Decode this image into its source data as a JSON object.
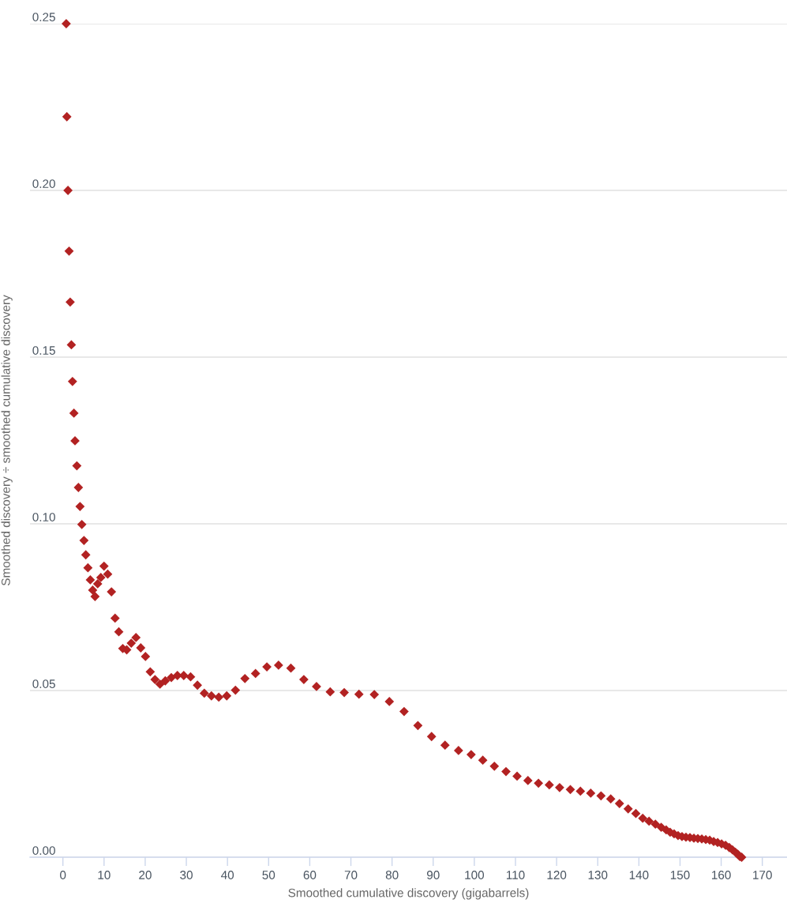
{
  "chart_data": {
    "type": "scatter",
    "xlabel": "Smoothed cumulative discovery (gigabarrels)",
    "ylabel": "Smoothed discovery ÷ smoothed cumulative discovery",
    "xlim": [
      -8,
      176
    ],
    "ylim": [
      0,
      0.25
    ],
    "xticks": [
      0,
      10,
      20,
      30,
      40,
      50,
      60,
      70,
      80,
      90,
      100,
      110,
      120,
      130,
      140,
      150,
      160,
      170
    ],
    "yticks": [
      {
        "value": 0,
        "label": "0.00"
      },
      0.05,
      {
        "value": 0.1,
        "label": "0.10"
      },
      0.15,
      {
        "value": 0.2,
        "label": "0.20"
      },
      0.25
    ],
    "grid": "y",
    "marker": "diamond",
    "series": [
      {
        "color": "#b22222",
        "x": [
          0.81,
          0.96,
          1.23,
          1.5,
          1.77,
          2.06,
          2.33,
          2.68,
          2.94,
          3.39,
          3.77,
          4.16,
          4.6,
          5.12,
          5.56,
          6.08,
          6.66,
          7.24,
          7.81,
          8.45,
          9.22,
          9.99,
          10.89,
          11.8,
          12.68,
          13.59,
          14.55,
          15.51,
          16.61,
          17.76,
          18.92,
          20.07,
          21.23,
          22.38,
          23.59,
          24.88,
          26.35,
          27.83,
          29.37,
          31.04,
          32.7,
          34.37,
          36.1,
          37.89,
          39.82,
          41.94,
          44.24,
          46.82,
          49.58,
          52.41,
          55.41,
          58.56,
          61.64,
          64.97,
          68.38,
          71.96,
          75.69,
          79.35,
          82.93,
          86.28,
          89.61,
          92.88,
          96.16,
          99.23,
          102.06,
          104.87,
          107.7,
          110.39,
          113.03,
          115.59,
          118.22,
          120.73,
          123.34,
          125.79,
          128.29,
          130.79,
          133.16,
          135.28,
          137.39,
          139.26,
          140.93,
          142.47,
          144.01,
          145.42,
          146.63,
          147.59,
          148.56,
          149.52,
          150.48,
          151.44,
          152.41,
          153.37,
          154.33,
          155.29,
          156.26,
          157.22,
          158.18,
          159.14,
          160.1,
          161.06,
          161.97,
          162.74,
          163.45,
          164.03,
          164.53,
          164.99
        ],
        "values": [
          0.25,
          0.2221,
          0.2,
          0.1818,
          0.1665,
          0.1537,
          0.1427,
          0.1332,
          0.1249,
          0.1174,
          0.1109,
          0.1052,
          0.0998,
          0.095,
          0.0907,
          0.0868,
          0.0832,
          0.0801,
          0.0782,
          0.082,
          0.0839,
          0.0873,
          0.0849,
          0.0796,
          0.0717,
          0.0676,
          0.0626,
          0.0622,
          0.0642,
          0.0659,
          0.0628,
          0.0602,
          0.0556,
          0.0533,
          0.0519,
          0.0529,
          0.0539,
          0.0545,
          0.0545,
          0.0541,
          0.0516,
          0.0492,
          0.0484,
          0.048,
          0.0484,
          0.0501,
          0.0536,
          0.0551,
          0.0571,
          0.0576,
          0.0567,
          0.0533,
          0.0512,
          0.0496,
          0.0494,
          0.0489,
          0.0488,
          0.0467,
          0.0437,
          0.0395,
          0.0362,
          0.0336,
          0.032,
          0.0308,
          0.0291,
          0.0273,
          0.0257,
          0.0243,
          0.023,
          0.0222,
          0.0217,
          0.0209,
          0.0203,
          0.0198,
          0.0192,
          0.0184,
          0.0175,
          0.0161,
          0.0145,
          0.0131,
          0.0117,
          0.0108,
          0.0099,
          0.009,
          0.0082,
          0.0075,
          0.007,
          0.0065,
          0.0062,
          0.006,
          0.0059,
          0.0057,
          0.0056,
          0.0055,
          0.0053,
          0.0051,
          0.0047,
          0.0044,
          0.004,
          0.0036,
          0.0029,
          0.0022,
          0.0015,
          0.0009,
          0.0002,
          0.0
        ]
      }
    ]
  }
}
